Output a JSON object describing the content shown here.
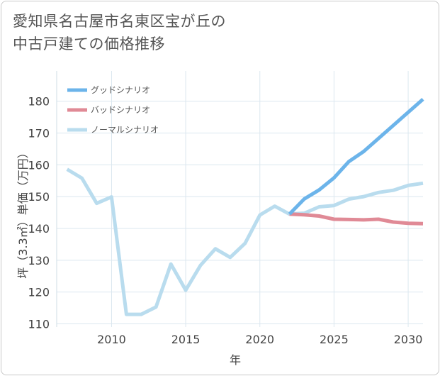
{
  "title": {
    "line1": "愛知県名古屋市名東区宝が丘の",
    "line2": "中古戸建ての価格推移"
  },
  "chart_data": {
    "type": "line",
    "xlabel": "年",
    "ylabel": "坪（3.3㎡）単価（万円）",
    "xlim": [
      2006.3,
      2031
    ],
    "ylim": [
      109,
      189.5
    ],
    "xticks": [
      2010,
      2015,
      2020,
      2025,
      2030
    ],
    "yticks": [
      110,
      120,
      130,
      140,
      150,
      160,
      170,
      180
    ],
    "legend_position": "top-left",
    "series": [
      {
        "name": "グッドシナリオ",
        "color": "#6cb4ea",
        "x": [
          2022,
          2023,
          2024,
          2025,
          2026,
          2027,
          2028,
          2029,
          2030,
          2031
        ],
        "values": [
          144.5,
          149.3,
          152.1,
          155.9,
          161.0,
          164.2,
          168.3,
          172.4,
          176.5,
          180.6
        ]
      },
      {
        "name": "バッドシナリオ",
        "color": "#e08a96",
        "x": [
          2022,
          2023,
          2024,
          2025,
          2026,
          2027,
          2028,
          2029,
          2030,
          2031
        ],
        "values": [
          144.5,
          144.3,
          143.9,
          142.9,
          142.8,
          142.7,
          142.9,
          142.0,
          141.6,
          141.5
        ]
      },
      {
        "name": "ノーマルシナリオ",
        "color": "#b9dcee",
        "x": [
          2007,
          2008,
          2009,
          2010,
          2011,
          2012,
          2013,
          2014,
          2015,
          2016,
          2017,
          2018,
          2019,
          2020,
          2021,
          2022,
          2023,
          2024,
          2025,
          2026,
          2027,
          2028,
          2029,
          2030,
          2031
        ],
        "values": [
          158.6,
          155.8,
          147.9,
          149.9,
          113.0,
          113.0,
          115.3,
          128.8,
          120.6,
          128.4,
          133.6,
          130.9,
          135.3,
          144.2,
          147.0,
          144.5,
          144.8,
          146.8,
          147.2,
          149.2,
          150.0,
          151.3,
          152.0,
          153.5,
          154.2
        ]
      }
    ]
  }
}
